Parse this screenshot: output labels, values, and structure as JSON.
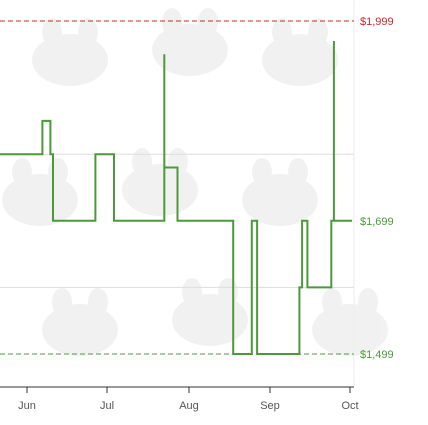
{
  "chart_data": {
    "type": "line",
    "title": "",
    "xlabel": "",
    "ylabel": "",
    "x_tick_labels": [
      "Jun",
      "Jul",
      "Aug",
      "Sep",
      "Oct"
    ],
    "ylim": [
      1450,
      2030
    ],
    "grid": true,
    "reference_lines": [
      {
        "name": "highest",
        "label": "$1,999",
        "value": 1999,
        "color": "#c62828"
      },
      {
        "name": "current",
        "label": "$1,699",
        "value": 1699,
        "color": "#4a9a3a"
      },
      {
        "name": "lowest",
        "label": "$1,499",
        "value": 1499,
        "color": "#4a9a3a"
      }
    ],
    "series": [
      {
        "color": "#4a9a3a",
        "type": "step",
        "points": [
          [
            "2023-05-20",
            1799
          ],
          [
            "2023-06-05",
            1849
          ],
          [
            "2023-06-08",
            1799
          ],
          [
            "2023-06-09",
            1699
          ],
          [
            "2023-06-25",
            1799
          ],
          [
            "2023-07-02",
            1699
          ],
          [
            "2023-07-21",
            1949
          ],
          [
            "2023-07-21",
            1779
          ],
          [
            "2023-07-26",
            1699
          ],
          [
            "2023-08-16",
            1499
          ],
          [
            "2023-08-23",
            1699
          ],
          [
            "2023-08-25",
            1499
          ],
          [
            "2023-09-10",
            1599
          ],
          [
            "2023-09-11",
            1699
          ],
          [
            "2023-09-13",
            1599
          ],
          [
            "2023-09-22",
            1699
          ],
          [
            "2023-09-23",
            1969
          ],
          [
            "2023-09-23",
            1699
          ]
        ]
      }
    ]
  }
}
